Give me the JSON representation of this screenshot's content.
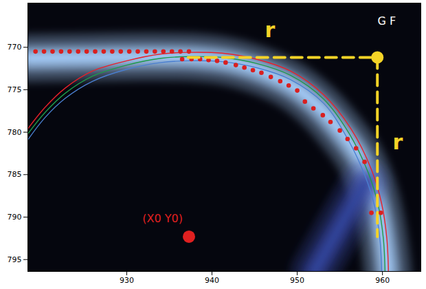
{
  "chart_data": {
    "type": "scatter",
    "xlim": [
      918.4,
      964.5
    ],
    "ylim": [
      796.4,
      764.8
    ],
    "xticks": [
      930,
      940,
      950,
      960
    ],
    "yticks": [
      770,
      775,
      780,
      785,
      790,
      795
    ],
    "series": [
      {
        "type": "band",
        "color": "#a9d2ff",
        "x": [
          918.4,
          925,
          932,
          938,
          942,
          946,
          949.5,
          952.5,
          955,
          957.2,
          958.8,
          959.8,
          960.4,
          960.6
        ],
        "values": [
          771.3,
          771.2,
          771.1,
          771.2,
          771.7,
          772.9,
          774.6,
          777,
          779.8,
          782.8,
          786.5,
          790.5,
          794.5,
          796.4
        ]
      },
      {
        "type": "band",
        "color": "#3446a0",
        "x": [
          952,
          954.5,
          956.5,
          958
        ],
        "values": [
          796.4,
          792,
          788.5,
          786
        ]
      },
      {
        "type": "line",
        "color": "#e8202a",
        "x": [
          918.4,
          920.4,
          922.8,
          926,
          930,
          934,
          937.2,
          941.2,
          945.2,
          949.2,
          953.1,
          956.3,
          958.7,
          959.9,
          960.5,
          960.7
        ],
        "values": [
          779.6,
          777.1,
          774.8,
          772.8,
          771.6,
          770.8,
          770.6,
          770.7,
          771.4,
          772.8,
          775.6,
          779.6,
          784.4,
          788.4,
          792.4,
          796.4
        ]
      },
      {
        "type": "line",
        "color": "#1f9a4a",
        "x": [
          918.4,
          920.4,
          922.8,
          926,
          930,
          934,
          937.2,
          941.2,
          945.2,
          949.2,
          953.1,
          956,
          958.3,
          959.5,
          960.1,
          960.3
        ],
        "values": [
          780.2,
          777.7,
          775.4,
          773.4,
          772.1,
          771.3,
          771.1,
          771.2,
          771.9,
          773.3,
          776.1,
          780,
          784.7,
          788.6,
          792.5,
          796.4
        ]
      },
      {
        "type": "line",
        "color": "#4a7fd0",
        "x": [
          918.4,
          920.4,
          922.8,
          926,
          930,
          934,
          937.2,
          941.2,
          945.2,
          949.2,
          953.1,
          955.7,
          957.9,
          959.1,
          959.7,
          959.9
        ],
        "values": [
          780.9,
          778.3,
          776,
          774,
          772.6,
          771.8,
          771.6,
          771.7,
          772.4,
          773.8,
          776.6,
          780.4,
          785,
          788.8,
          792.6,
          796.4
        ]
      },
      {
        "type": "scatter",
        "color": "#d92020",
        "marker": "circle",
        "x": [
          919.3,
          920.3,
          921.3,
          922.3,
          923.3,
          924.3,
          925.3,
          926.3,
          927.3,
          928.3,
          929.3,
          930.3,
          931.3,
          932.3,
          933.3,
          934.3,
          935.3,
          936.3,
          937.3,
          936.5,
          937.6,
          938.6,
          939.6,
          940.6,
          941.6,
          942.8,
          943.8,
          944.8,
          945.8,
          946.9,
          948.0,
          949.0,
          950.0,
          950.9,
          951.9,
          953.0,
          953.9,
          955.0,
          955.9,
          956.9,
          957.9,
          958.7,
          959.8
        ],
        "values": [
          770.5,
          770.5,
          770.5,
          770.5,
          770.5,
          770.5,
          770.5,
          770.5,
          770.5,
          770.5,
          770.5,
          770.5,
          770.5,
          770.5,
          770.5,
          770.5,
          770.5,
          770.5,
          770.5,
          771.4,
          771.4,
          771.4,
          771.5,
          771.6,
          771.8,
          772.1,
          772.4,
          772.7,
          773.0,
          773.5,
          774.0,
          774.5,
          775.1,
          776.4,
          777.2,
          778.0,
          778.8,
          779.8,
          780.8,
          781.9,
          783.5,
          789.5,
          789.5
        ]
      }
    ],
    "segments": [
      {
        "x": [
          937.2,
          959.4
        ],
        "y": [
          771.2,
          771.2
        ],
        "color": "#f5d327",
        "line_style": "dashed"
      },
      {
        "x": [
          959.4,
          959.4
        ],
        "y": [
          771.2,
          792.3
        ],
        "color": "#f5d327",
        "line_style": "dashed"
      }
    ],
    "markers": [
      {
        "x": 959.4,
        "y": 771.2,
        "color": "#f5d327",
        "marker": "circle"
      },
      {
        "x": 937.3,
        "y": 792.3,
        "color": "#e02020",
        "marker": "circle"
      }
    ],
    "annotations": [
      {
        "text": "r",
        "x": 946.8,
        "y": 768.0,
        "color": "#f5d327"
      },
      {
        "text": "r",
        "x": 961.8,
        "y": 781.2,
        "color": "#f5d327"
      },
      {
        "text": "G F",
        "x": 960.5,
        "y": 766.9,
        "color": "#ffffff"
      },
      {
        "text": "(X0 Y0)",
        "x": 934.2,
        "y": 790.2,
        "color": "#e02020"
      }
    ]
  }
}
